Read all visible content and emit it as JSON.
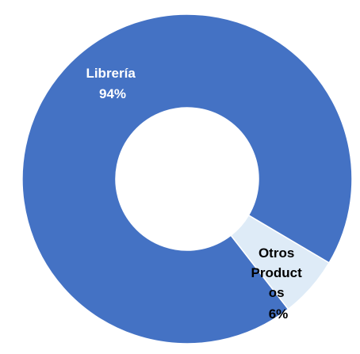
{
  "chart_data": {
    "type": "pie",
    "donut": true,
    "categories": [
      "Librería",
      "Otros Productos"
    ],
    "values": [
      94,
      6
    ],
    "colors": [
      "#4472C4",
      "#DEEBF7"
    ],
    "label_colors": [
      "#ffffff",
      "#000000"
    ],
    "labels": [
      {
        "name_lines": [
          "Librería"
        ],
        "value": "94%"
      },
      {
        "name_lines": [
          "Otros",
          "Product",
          "os"
        ],
        "value": "6%"
      }
    ],
    "legend": false
  }
}
